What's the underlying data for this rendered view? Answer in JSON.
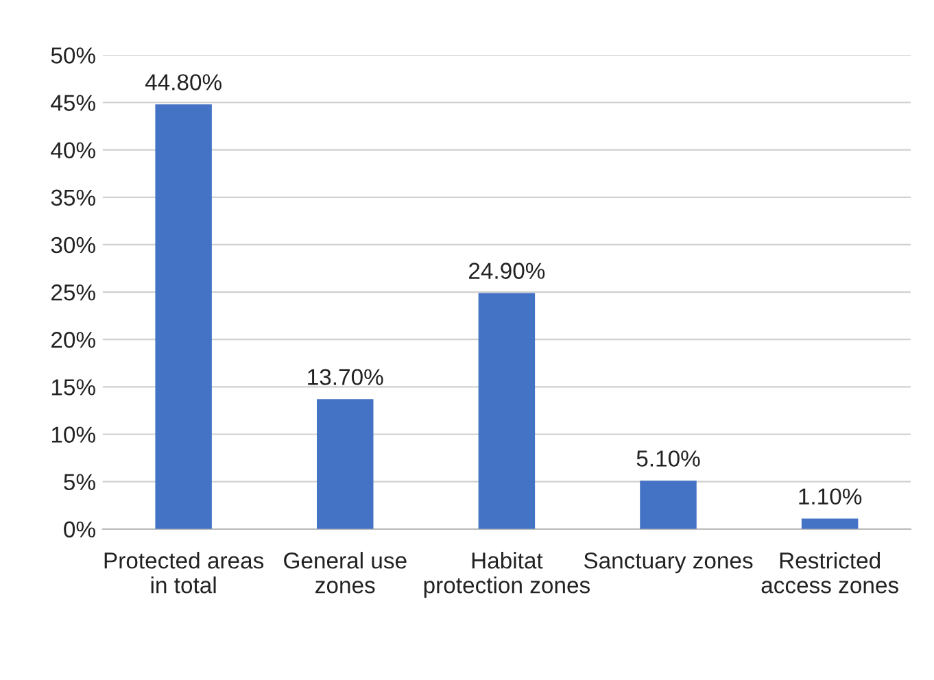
{
  "chart_data": {
    "type": "bar",
    "categories": [
      "Protected areas in total",
      "General use zones",
      "Habitat protection zones",
      "Sanctuary zones",
      "Restricted access zones"
    ],
    "values": [
      44.8,
      13.7,
      24.9,
      5.1,
      1.1
    ],
    "value_labels": [
      "44.80%",
      "13.70%",
      "24.90%",
      "5.10%",
      "1.10%"
    ],
    "color": "#4472c4",
    "ylim": [
      0,
      50
    ],
    "yticks": [
      {
        "value": 0,
        "label": "0%"
      },
      {
        "value": 5,
        "label": "5%"
      },
      {
        "value": 10,
        "label": "10%"
      },
      {
        "value": 15,
        "label": "15%"
      },
      {
        "value": 20,
        "label": "20%"
      },
      {
        "value": 25,
        "label": "25%"
      },
      {
        "value": 30,
        "label": "30%"
      },
      {
        "value": 35,
        "label": "35%"
      },
      {
        "value": 40,
        "label": "40%"
      },
      {
        "value": 45,
        "label": "45%"
      },
      {
        "value": 50,
        "label": "50%"
      }
    ],
    "grid": "y",
    "legend": false
  }
}
